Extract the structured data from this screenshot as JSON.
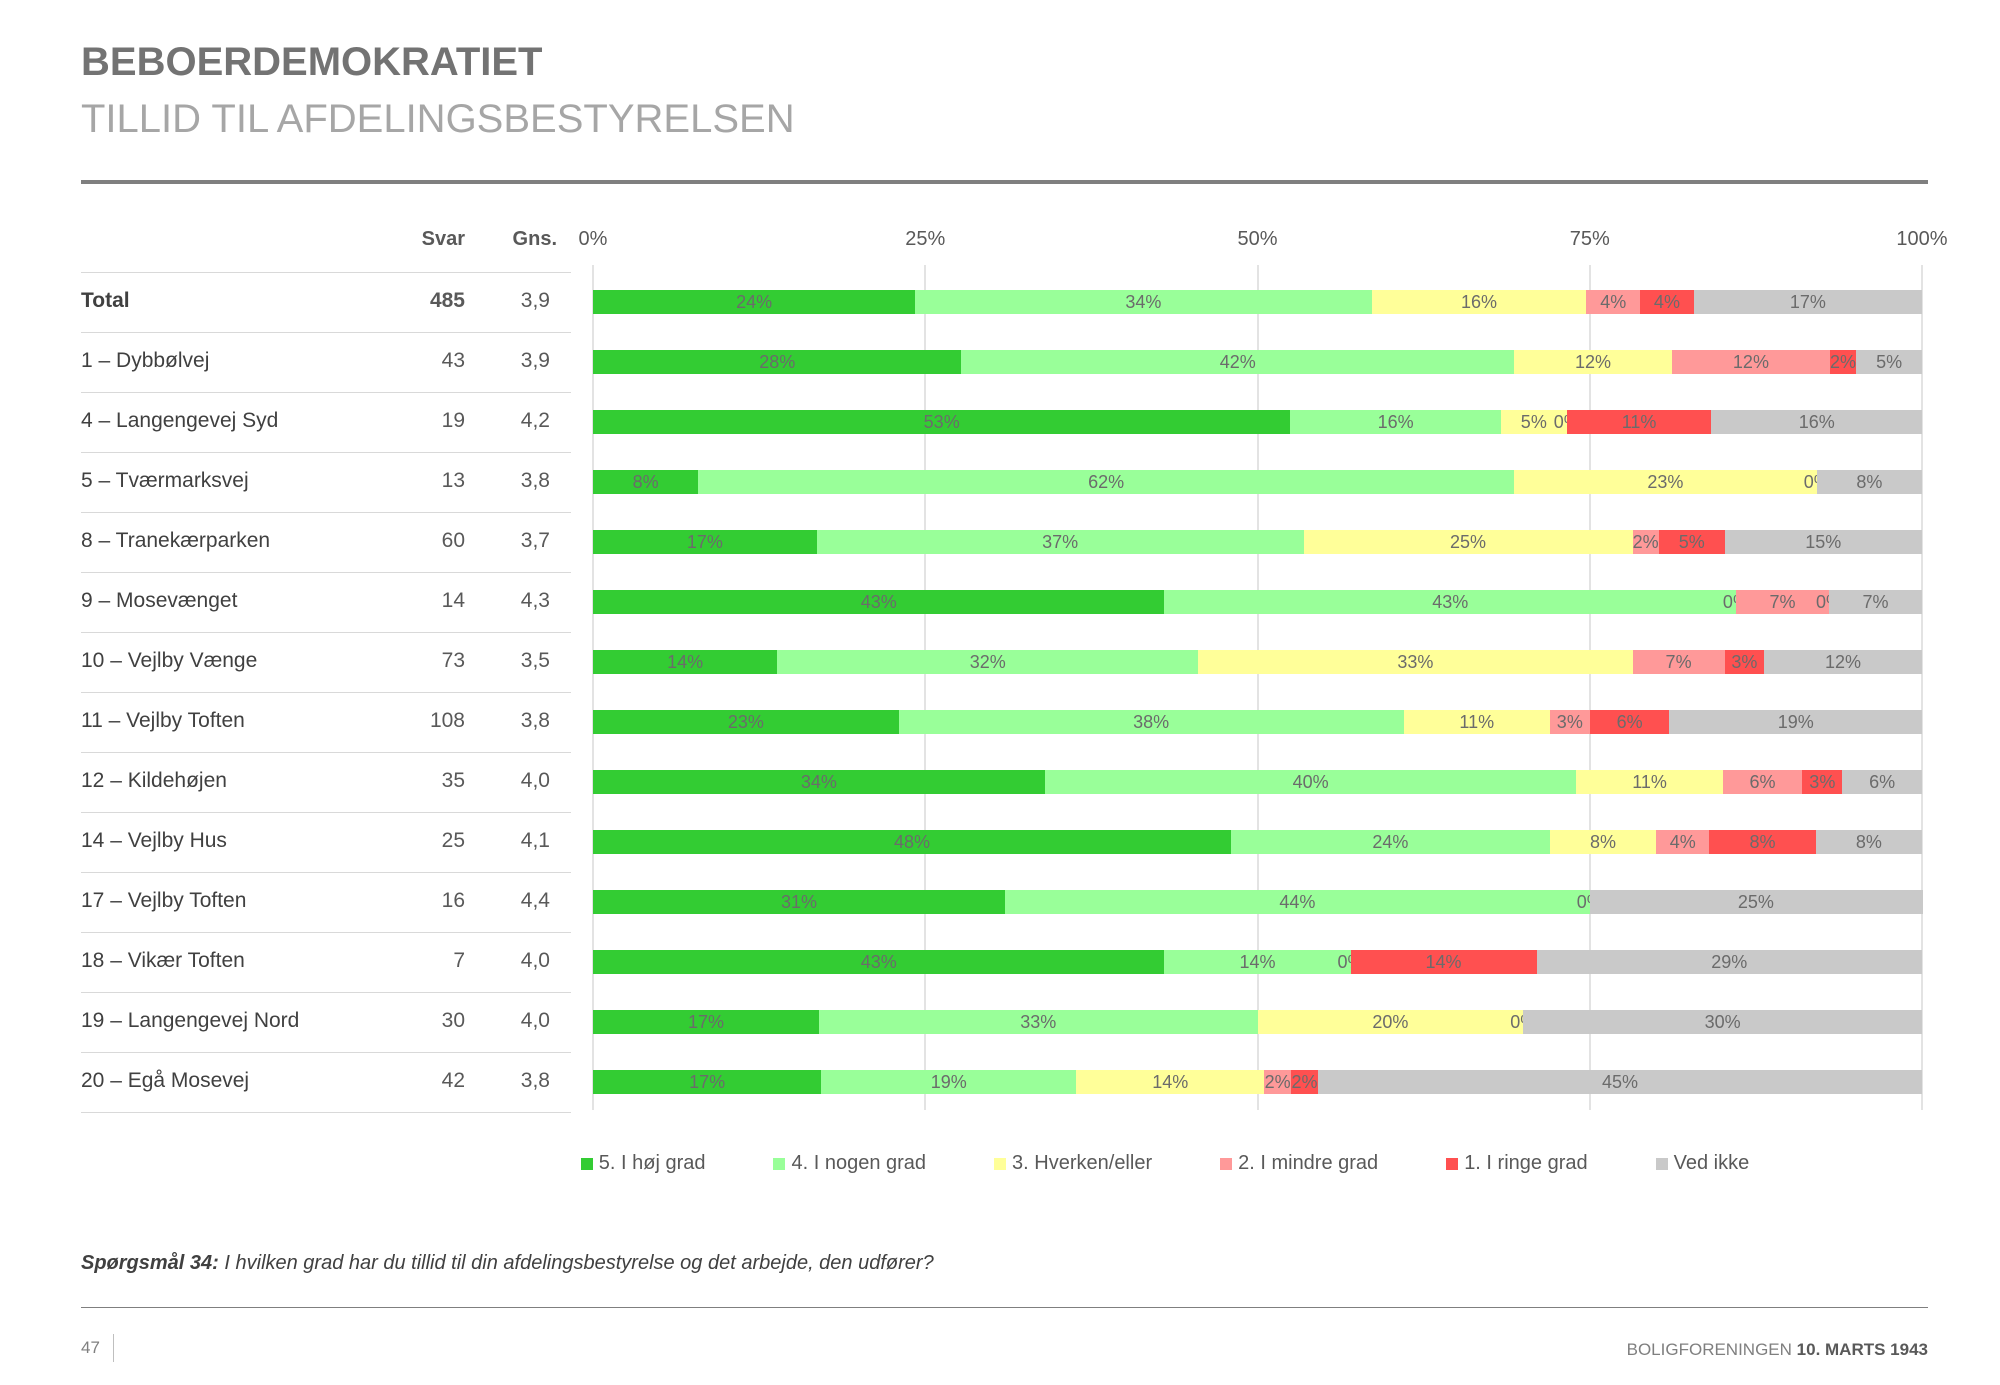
{
  "header": {
    "title": "BEBOERDEMOKRATIET",
    "subtitle": "TILLID TIL AFDELINGSBESTYRELSEN"
  },
  "table": {
    "col_svar": "Svar",
    "col_gns": "Gns."
  },
  "chart_data": {
    "type": "bar",
    "orientation": "horizontal-stacked-100",
    "xticks": [
      "0%",
      "25%",
      "50%",
      "75%",
      "100%"
    ],
    "xlim": [
      0,
      100
    ],
    "grid": true,
    "legend_position": "bottom",
    "series": [
      {
        "name": "5. I høj grad",
        "color": "#33cc33"
      },
      {
        "name": "4. I nogen grad",
        "color": "#99ff99"
      },
      {
        "name": "3. Hverken/eller",
        "color": "#ffff99"
      },
      {
        "name": "2. I mindre grad",
        "color": "#ff9999"
      },
      {
        "name": "1. I ringe grad",
        "color": "#ff5050"
      },
      {
        "name": "Ved ikke",
        "color": "#c9c9c9"
      }
    ],
    "rows": [
      {
        "label": "Total",
        "svar": "485",
        "gns": "3,9",
        "bold": true,
        "values": [
          24,
          34,
          16,
          4,
          4,
          17
        ]
      },
      {
        "label": "1 – Dybbølvej",
        "svar": "43",
        "gns": "3,9",
        "values": [
          28,
          42,
          12,
          12,
          2,
          5
        ]
      },
      {
        "label": "4 – Langengevej Syd",
        "svar": "19",
        "gns": "4,2",
        "values": [
          53,
          16,
          5,
          0,
          11,
          16
        ]
      },
      {
        "label": "5 – Tværmarksvej",
        "svar": "13",
        "gns": "3,8",
        "values": [
          8,
          62,
          23,
          0,
          null,
          8
        ]
      },
      {
        "label": "8 – Tranekærparken",
        "svar": "60",
        "gns": "3,7",
        "values": [
          17,
          37,
          25,
          2,
          5,
          15
        ]
      },
      {
        "label": "9 – Mosevænget",
        "svar": "14",
        "gns": "4,3",
        "values": [
          43,
          43,
          0,
          7,
          0,
          7
        ]
      },
      {
        "label": "10 – Vejlby Vænge",
        "svar": "73",
        "gns": "3,5",
        "values": [
          14,
          32,
          33,
          7,
          3,
          12
        ]
      },
      {
        "label": "11 – Vejlby Toften",
        "svar": "108",
        "gns": "3,8",
        "values": [
          23,
          38,
          11,
          3,
          6,
          19
        ]
      },
      {
        "label": "12 – Kildehøjen",
        "svar": "35",
        "gns": "4,0",
        "values": [
          34,
          40,
          11,
          6,
          3,
          6
        ]
      },
      {
        "label": "14 – Vejlby Hus",
        "svar": "25",
        "gns": "4,1",
        "values": [
          48,
          24,
          8,
          4,
          8,
          8
        ]
      },
      {
        "label": "17 – Vejlby Toften",
        "svar": "16",
        "gns": "4,4",
        "values": [
          31,
          44,
          0,
          null,
          null,
          25
        ]
      },
      {
        "label": "18 – Vikær Toften",
        "svar": "7",
        "gns": "4,0",
        "values": [
          43,
          14,
          0,
          null,
          14,
          29
        ]
      },
      {
        "label": "19 – Langengevej Nord",
        "svar": "30",
        "gns": "4,0",
        "values": [
          17,
          33,
          20,
          0,
          null,
          30
        ]
      },
      {
        "label": "20 – Egå Mosevej",
        "svar": "42",
        "gns": "3,8",
        "values": [
          17,
          19,
          14,
          2,
          2,
          45
        ]
      }
    ]
  },
  "question": {
    "label": "Spørgsmål 34:",
    "text": " I hvilken grad har du tillid til din afdelingsbestyrelse og det arbejde, den udfører?"
  },
  "footer": {
    "page": "47",
    "org": "BOLIGFORENINGEN ",
    "date": "10. MARTS 1943"
  }
}
